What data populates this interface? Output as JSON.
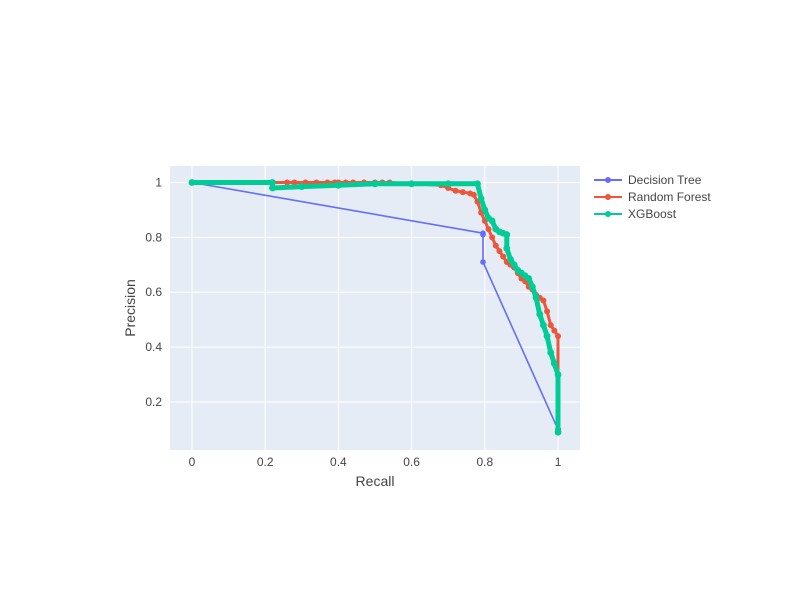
{
  "chart_data": {
    "type": "line",
    "title": "",
    "xlabel": "Recall",
    "ylabel": "Precision",
    "xlim": [
      -0.06,
      1.06
    ],
    "ylim": [
      0.025,
      1.06
    ],
    "xticks": [
      0,
      0.2,
      0.4,
      0.6,
      0.8,
      1
    ],
    "xtick_labels": [
      "0",
      "0.2",
      "0.4",
      "0.6",
      "0.8",
      "1"
    ],
    "yticks": [
      0.2,
      0.4,
      0.6,
      0.8,
      1
    ],
    "ytick_labels": [
      "0.2",
      "0.4",
      "0.6",
      "0.8",
      "1"
    ],
    "grid": true,
    "legend_position": "right",
    "background": "#e5ecf6",
    "series": [
      {
        "name": "Decision Tree",
        "color": "#636efa",
        "x": [
          0,
          0.795,
          0.795,
          0.795,
          1
        ],
        "y": [
          1,
          0.815,
          0.81,
          0.71,
          0.1
        ]
      },
      {
        "name": "Random Forest",
        "color": "#ef553b",
        "x": [
          0.22,
          0.26,
          0.28,
          0.31,
          0.34,
          0.37,
          0.39,
          0.4,
          0.42,
          0.44,
          0.47,
          0.5,
          0.52,
          0.54,
          0.6,
          0.68,
          0.7,
          0.72,
          0.74,
          0.76,
          0.77,
          0.78,
          0.79,
          0.8,
          0.81,
          0.82,
          0.83,
          0.84,
          0.85,
          0.86,
          0.87,
          0.88,
          0.89,
          0.9,
          0.91,
          0.92,
          0.93,
          0.94,
          0.95,
          0.96,
          0.97,
          0.98,
          0.99,
          1.0,
          1.0
        ],
        "y": [
          1.0,
          1.0,
          1.0,
          1.0,
          1.0,
          1.0,
          1.0,
          1.0,
          1.0,
          1.0,
          1.0,
          1.0,
          1.0,
          1.0,
          0.995,
          0.99,
          0.98,
          0.97,
          0.965,
          0.96,
          0.955,
          0.93,
          0.89,
          0.86,
          0.83,
          0.8,
          0.77,
          0.75,
          0.73,
          0.71,
          0.7,
          0.69,
          0.67,
          0.65,
          0.64,
          0.62,
          0.61,
          0.59,
          0.58,
          0.57,
          0.53,
          0.48,
          0.46,
          0.44,
          0.1
        ]
      },
      {
        "name": "XGBoost",
        "color": "#00cc96",
        "x": [
          0,
          0.22,
          0.22,
          0.3,
          0.4,
          0.5,
          0.6,
          0.7,
          0.78,
          0.79,
          0.8,
          0.81,
          0.82,
          0.83,
          0.84,
          0.85,
          0.86,
          0.86,
          0.87,
          0.88,
          0.89,
          0.9,
          0.91,
          0.92,
          0.93,
          0.94,
          0.95,
          0.96,
          0.97,
          0.98,
          0.99,
          1.0,
          1.0
        ],
        "y": [
          1.0,
          1.0,
          0.98,
          0.985,
          0.99,
          0.995,
          0.995,
          0.995,
          0.995,
          0.94,
          0.9,
          0.87,
          0.86,
          0.83,
          0.82,
          0.815,
          0.81,
          0.76,
          0.72,
          0.7,
          0.68,
          0.67,
          0.66,
          0.65,
          0.62,
          0.58,
          0.52,
          0.48,
          0.44,
          0.38,
          0.34,
          0.3,
          0.09
        ]
      }
    ]
  }
}
